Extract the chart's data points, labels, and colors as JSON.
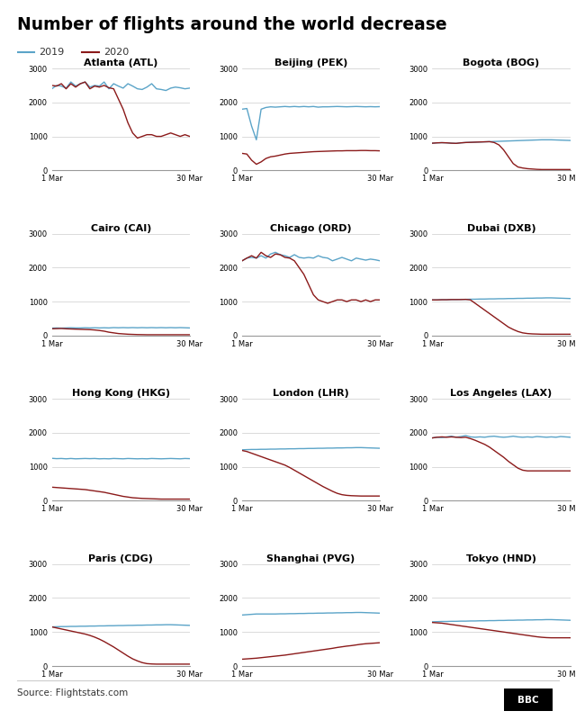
{
  "title": "Number of flights around the world decrease",
  "color_2019": "#5ba4c8",
  "color_2020": "#8b1a1a",
  "source": "Source: Flightstats.com",
  "airports": [
    "Atlanta (ATL)",
    "Beijing (PEK)",
    "Bogota (BOG)",
    "Cairo (CAI)",
    "Chicago (ORD)",
    "Dubai (DXB)",
    "Hong Kong (HKG)",
    "London (LHR)",
    "Los Angeles (LAX)",
    "Paris (CDG)",
    "Shanghai (PVG)",
    "Tokyo (HND)"
  ],
  "days": 30,
  "data_2019": {
    "Atlanta (ATL)": [
      2400,
      2500,
      2480,
      2420,
      2600,
      2480,
      2550,
      2600,
      2450,
      2500,
      2480,
      2600,
      2400,
      2550,
      2480,
      2420,
      2550,
      2480,
      2400,
      2380,
      2450,
      2550,
      2400,
      2380,
      2350,
      2420,
      2450,
      2430,
      2400,
      2420
    ],
    "Beijing (PEK)": [
      1800,
      1820,
      1300,
      900,
      1800,
      1850,
      1870,
      1860,
      1870,
      1880,
      1870,
      1880,
      1870,
      1880,
      1870,
      1880,
      1860,
      1870,
      1870,
      1875,
      1880,
      1875,
      1870,
      1875,
      1880,
      1875,
      1870,
      1875,
      1870,
      1875
    ],
    "Bogota (BOG)": [
      800,
      810,
      815,
      810,
      800,
      795,
      810,
      820,
      825,
      830,
      835,
      840,
      845,
      850,
      855,
      860,
      865,
      870,
      875,
      880,
      885,
      890,
      895,
      900,
      900,
      900,
      895,
      890,
      885,
      880
    ],
    "Cairo (CAI)": [
      220,
      225,
      220,
      225,
      230,
      225,
      225,
      230,
      225,
      230,
      225,
      230,
      225,
      235,
      230,
      235,
      230,
      235,
      230,
      235,
      230,
      235,
      230,
      235,
      230,
      235,
      230,
      235,
      230,
      225
    ],
    "Chicago (ORD)": [
      2200,
      2280,
      2300,
      2280,
      2350,
      2280,
      2400,
      2450,
      2380,
      2350,
      2300,
      2380,
      2300,
      2280,
      2300,
      2280,
      2350,
      2300,
      2280,
      2200,
      2250,
      2300,
      2250,
      2200,
      2280,
      2250,
      2220,
      2250,
      2230,
      2200
    ],
    "Dubai (DXB)": [
      1050,
      1050,
      1055,
      1055,
      1060,
      1060,
      1065,
      1065,
      1070,
      1070,
      1075,
      1075,
      1080,
      1080,
      1085,
      1085,
      1090,
      1090,
      1095,
      1095,
      1100,
      1100,
      1105,
      1105,
      1110,
      1110,
      1105,
      1100,
      1095,
      1090
    ],
    "Hong Kong (HKG)": [
      1250,
      1240,
      1245,
      1235,
      1245,
      1235,
      1240,
      1245,
      1240,
      1245,
      1235,
      1240,
      1235,
      1245,
      1240,
      1235,
      1245,
      1240,
      1235,
      1240,
      1235,
      1245,
      1240,
      1235,
      1240,
      1245,
      1240,
      1235,
      1245,
      1240
    ],
    "London (LHR)": [
      1500,
      1505,
      1510,
      1510,
      1515,
      1515,
      1520,
      1520,
      1525,
      1525,
      1530,
      1530,
      1535,
      1535,
      1540,
      1540,
      1545,
      1545,
      1550,
      1550,
      1555,
      1555,
      1560,
      1560,
      1565,
      1565,
      1560,
      1555,
      1550,
      1545
    ],
    "Los Angeles (LAX)": [
      1850,
      1870,
      1860,
      1880,
      1900,
      1870,
      1890,
      1920,
      1880,
      1870,
      1880,
      1870,
      1890,
      1900,
      1880,
      1870,
      1880,
      1900,
      1880,
      1870,
      1880,
      1870,
      1890,
      1880,
      1870,
      1880,
      1870,
      1890,
      1880,
      1870
    ],
    "Paris (CDG)": [
      1150,
      1155,
      1160,
      1160,
      1165,
      1165,
      1170,
      1170,
      1175,
      1175,
      1180,
      1180,
      1185,
      1185,
      1190,
      1190,
      1195,
      1195,
      1200,
      1200,
      1205,
      1205,
      1210,
      1210,
      1215,
      1215,
      1210,
      1205,
      1200,
      1195
    ],
    "Shanghai (PVG)": [
      1500,
      1510,
      1520,
      1530,
      1530,
      1530,
      1530,
      1530,
      1535,
      1535,
      1540,
      1540,
      1545,
      1545,
      1550,
      1550,
      1555,
      1555,
      1560,
      1560,
      1565,
      1565,
      1570,
      1570,
      1575,
      1575,
      1570,
      1565,
      1560,
      1555
    ],
    "Tokyo (HND)": [
      1300,
      1305,
      1310,
      1310,
      1315,
      1315,
      1320,
      1320,
      1325,
      1325,
      1330,
      1330,
      1335,
      1335,
      1340,
      1340,
      1345,
      1345,
      1350,
      1350,
      1355,
      1355,
      1360,
      1360,
      1365,
      1365,
      1360,
      1355,
      1350,
      1345
    ]
  },
  "data_2020": {
    "Atlanta (ATL)": [
      2500,
      2480,
      2550,
      2400,
      2550,
      2450,
      2550,
      2600,
      2400,
      2480,
      2450,
      2500,
      2430,
      2400,
      2100,
      1800,
      1400,
      1100,
      950,
      1000,
      1050,
      1050,
      1000,
      1000,
      1050,
      1100,
      1050,
      1000,
      1050,
      1000
    ],
    "Beijing (PEK)": [
      500,
      480,
      300,
      180,
      250,
      350,
      400,
      420,
      450,
      480,
      500,
      510,
      520,
      530,
      540,
      550,
      555,
      560,
      565,
      570,
      575,
      575,
      580,
      580,
      580,
      585,
      585,
      580,
      580,
      575
    ],
    "Bogota (BOG)": [
      800,
      810,
      815,
      810,
      800,
      795,
      810,
      820,
      825,
      830,
      835,
      840,
      845,
      820,
      750,
      600,
      400,
      200,
      100,
      70,
      50,
      40,
      30,
      25,
      25,
      25,
      25,
      25,
      25,
      25
    ],
    "Cairo (CAI)": [
      200,
      205,
      210,
      200,
      195,
      190,
      185,
      180,
      175,
      165,
      150,
      130,
      100,
      80,
      60,
      50,
      40,
      35,
      30,
      28,
      25,
      25,
      25,
      25,
      25,
      25,
      25,
      25,
      25,
      25
    ],
    "Chicago (ORD)": [
      2200,
      2280,
      2350,
      2280,
      2450,
      2350,
      2300,
      2400,
      2380,
      2300,
      2280,
      2200,
      2000,
      1800,
      1500,
      1200,
      1050,
      1000,
      950,
      1000,
      1050,
      1050,
      1000,
      1050,
      1050,
      1000,
      1050,
      1000,
      1050,
      1050
    ],
    "Dubai (DXB)": [
      1050,
      1050,
      1055,
      1055,
      1060,
      1060,
      1060,
      1065,
      1050,
      950,
      850,
      750,
      650,
      550,
      450,
      350,
      250,
      180,
      120,
      80,
      60,
      50,
      45,
      40,
      40,
      40,
      40,
      40,
      40,
      40
    ],
    "Hong Kong (HKG)": [
      400,
      390,
      380,
      370,
      360,
      350,
      340,
      330,
      310,
      290,
      270,
      250,
      220,
      190,
      160,
      130,
      110,
      90,
      80,
      70,
      65,
      60,
      55,
      50,
      50,
      50,
      50,
      50,
      50,
      50
    ],
    "London (LHR)": [
      1480,
      1450,
      1400,
      1350,
      1300,
      1250,
      1200,
      1150,
      1100,
      1050,
      980,
      900,
      820,
      740,
      660,
      580,
      500,
      420,
      350,
      280,
      220,
      180,
      160,
      150,
      145,
      140,
      140,
      140,
      140,
      140
    ],
    "Los Angeles (LAX)": [
      1850,
      1870,
      1880,
      1870,
      1880,
      1870,
      1860,
      1870,
      1830,
      1780,
      1720,
      1660,
      1580,
      1480,
      1380,
      1280,
      1160,
      1060,
      960,
      900,
      880,
      880,
      880,
      880,
      880,
      880,
      880,
      880,
      880,
      880
    ],
    "Paris (CDG)": [
      1150,
      1120,
      1090,
      1060,
      1030,
      1000,
      970,
      940,
      900,
      850,
      790,
      720,
      640,
      560,
      470,
      380,
      290,
      210,
      150,
      100,
      70,
      60,
      55,
      55,
      55,
      55,
      55,
      55,
      55,
      55
    ],
    "Shanghai (PVG)": [
      200,
      210,
      220,
      230,
      245,
      260,
      275,
      290,
      305,
      320,
      340,
      360,
      380,
      400,
      420,
      440,
      460,
      480,
      500,
      520,
      545,
      565,
      585,
      600,
      620,
      640,
      655,
      665,
      675,
      685
    ],
    "Tokyo (HND)": [
      1280,
      1270,
      1260,
      1240,
      1220,
      1200,
      1180,
      1160,
      1140,
      1120,
      1100,
      1080,
      1060,
      1040,
      1020,
      1000,
      980,
      960,
      940,
      920,
      900,
      880,
      860,
      845,
      835,
      830,
      830,
      830,
      830,
      830
    ]
  }
}
